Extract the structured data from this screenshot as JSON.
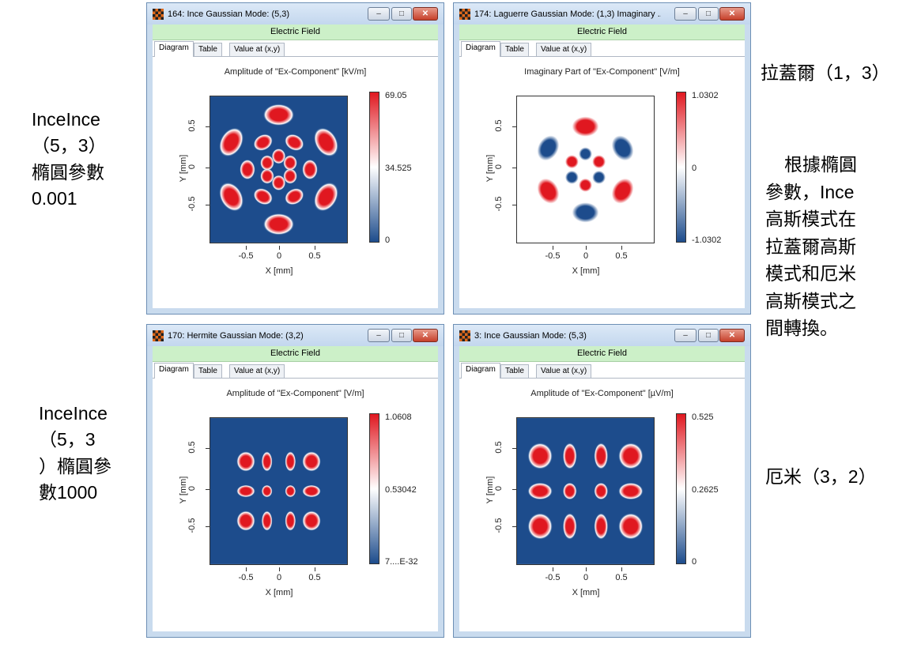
{
  "side_notes": {
    "left_top": [
      "InceInce",
      "（5，3）",
      "橢圓參數",
      "0.001"
    ],
    "left_bottom": [
      "InceInce",
      "（5，3",
      "）橢圓參",
      "數1000"
    ],
    "right_top": "拉蓋爾（1，3）",
    "right_middle": [
      "根據橢圓",
      "參數，Ince",
      "高斯模式在",
      "拉蓋爾高斯",
      "模式和厄米",
      "高斯模式之",
      "間轉換。"
    ],
    "right_bottom": "厄米（3，2）"
  },
  "tabs": [
    "Diagram",
    "Table",
    "Value at (x,y)"
  ],
  "field_label": "Electric Field",
  "axes": {
    "xlabel": "X [mm]",
    "ylabel": "Y [mm]",
    "xticks": [
      "-0.5",
      "0",
      "0.5"
    ],
    "yticks": [
      "0.5",
      "0",
      "-0.5"
    ]
  },
  "window_controls": {
    "minimize": "–",
    "maximize": "□",
    "close": "✕"
  },
  "windows": [
    {
      "title": "164: Ince Gaussian Mode: (5,3)",
      "plot_title": "Amplitude of \"Ex-Component\"  [kV/m]",
      "cbar_ticks": [
        "69.05",
        "34.525",
        "0"
      ],
      "pattern": "ince-ring-amplitude"
    },
    {
      "title": "174: Laguerre Gaussian Mode: (1,3) Imaginary ...",
      "plot_title": "Imaginary Part of \"Ex-Component\"  [V/m]",
      "cbar_ticks": [
        "1.0302",
        "0",
        "-1.0302"
      ],
      "pattern": "laguerre-imaginary"
    },
    {
      "title": "170: Hermite Gaussian Mode: (3,2)",
      "plot_title": "Amplitude of \"Ex-Component\"  [V/m]",
      "cbar_ticks": [
        "1.0608",
        "0.53042",
        "7....E-32"
      ],
      "pattern": "hermite-grid-small"
    },
    {
      "title": "3: Ince Gaussian Mode: (5,3)",
      "plot_title": "Amplitude of \"Ex-Component\"  [µV/m]",
      "cbar_ticks": [
        "0.525",
        "0.2625",
        "0"
      ],
      "pattern": "hermite-grid-large"
    }
  ],
  "colors": {
    "high": "#e01820",
    "mid": "#ffffff",
    "low": "#1d4c8c"
  }
}
